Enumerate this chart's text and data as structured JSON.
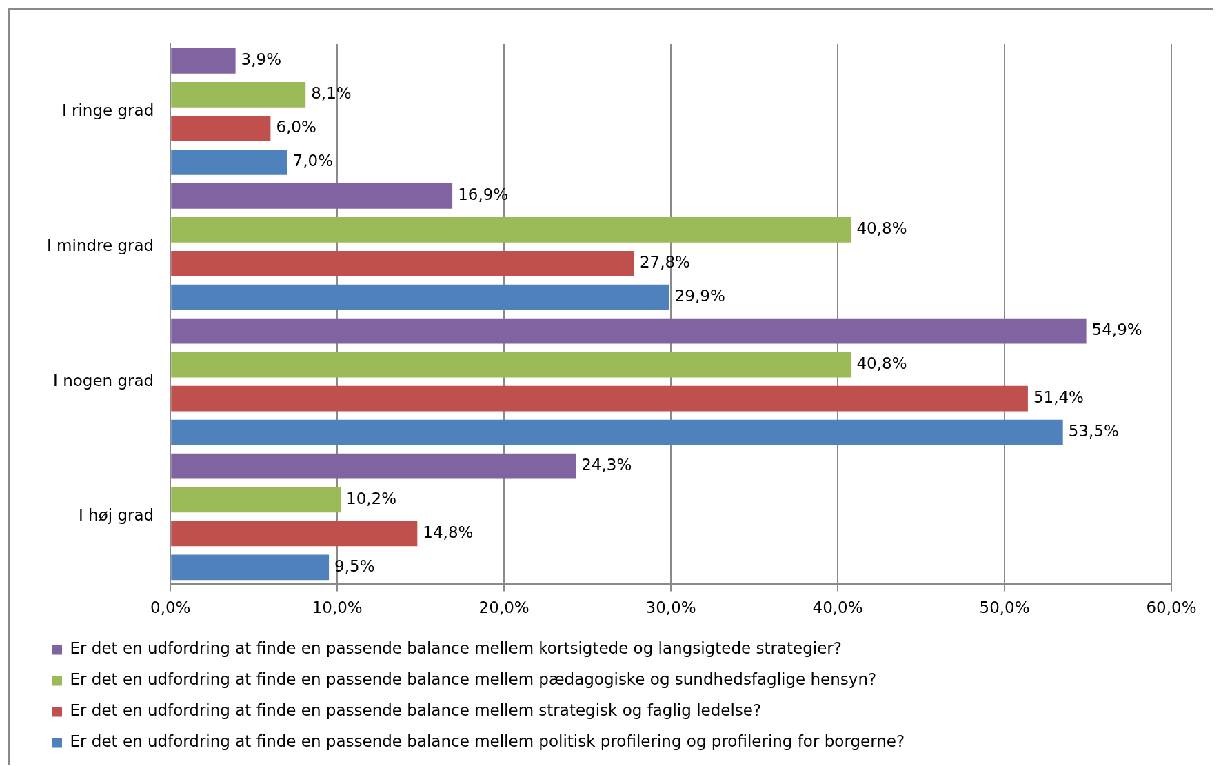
{
  "chart_data": {
    "type": "bar",
    "orientation": "horizontal",
    "categories": [
      "I ringe grad",
      "I mindre grad",
      "I nogen grad",
      "I høj grad"
    ],
    "series": [
      {
        "name": "Er det en udfordring at finde en passende balance mellem kortsigtede og langsigtede strategier?",
        "color": "#8064a2",
        "values": [
          3.9,
          16.9,
          54.9,
          24.3
        ],
        "value_labels": [
          "3,9%",
          "16,9%",
          "54,9%",
          "24,3%"
        ]
      },
      {
        "name": "Er det en udfordring at finde en passende balance mellem pædagogiske og sundhedsfaglige hensyn?",
        "color": "#9bbb59",
        "values": [
          8.1,
          40.8,
          40.8,
          10.2
        ],
        "value_labels": [
          "8,1%",
          "40,8%",
          "40,8%",
          "10,2%"
        ]
      },
      {
        "name": "Er det en udfordring at finde en passende balance mellem strategisk og faglig ledelse?",
        "color": "#c0504d",
        "values": [
          6.0,
          27.8,
          51.4,
          14.8
        ],
        "value_labels": [
          "6,0%",
          "27,8%",
          "51,4%",
          "14,8%"
        ]
      },
      {
        "name": "Er det en udfordring at finde en passende balance mellem politisk profilering og profilering for borgerne?",
        "color": "#4f81bd",
        "values": [
          7.0,
          29.9,
          53.5,
          9.5
        ],
        "value_labels": [
          "7,0%",
          "29,9%",
          "53,5%",
          "9,5%"
        ]
      }
    ],
    "xlim": [
      0,
      60
    ],
    "xticks": [
      {
        "value": 0,
        "label": "0,0%"
      },
      {
        "value": 10,
        "label": "10,0%"
      },
      {
        "value": 20,
        "label": "20,0%"
      },
      {
        "value": 30,
        "label": "30,0%"
      },
      {
        "value": 40,
        "label": "40,0%"
      },
      {
        "value": 50,
        "label": "50,0%"
      },
      {
        "value": 60,
        "label": "60,0%"
      }
    ],
    "grid": "x",
    "legend": "bottom"
  }
}
